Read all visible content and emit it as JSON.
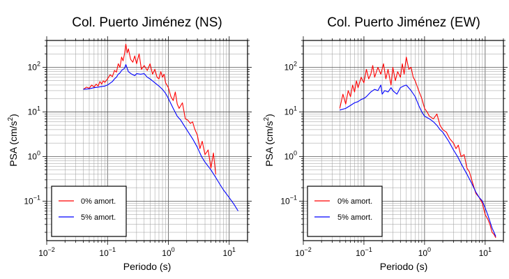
{
  "chart_data": [
    {
      "type": "line",
      "title": "Col. Puerto Jiménez (NS)",
      "xlabel": "Periodo (s)",
      "ylabel_main": "PSA (cm/s",
      "ylabel_sup": "2",
      "ylabel_close": ")",
      "x_scale": "log",
      "y_scale": "log",
      "xlim": [
        0.01,
        20
      ],
      "ylim": [
        0.013,
        400
      ],
      "grid": true,
      "legend_position": "bottom-left",
      "x_ticks": [
        {
          "base": "10",
          "exp": "−2",
          "value": 0.01
        },
        {
          "base": "10",
          "exp": "−1",
          "value": 0.1
        },
        {
          "base": "10",
          "exp": "0",
          "value": 1
        },
        {
          "base": "10",
          "exp": "1",
          "value": 10
        }
      ],
      "y_ticks": [
        {
          "base": "10",
          "exp": "−1",
          "value": 0.1
        },
        {
          "base": "10",
          "exp": "0",
          "value": 1
        },
        {
          "base": "10",
          "exp": "1",
          "value": 10
        },
        {
          "base": "10",
          "exp": "2",
          "value": 100
        }
      ],
      "series": [
        {
          "name": "0% amort.",
          "color": "#ff0000",
          "x": [
            0.04,
            0.045,
            0.05,
            0.055,
            0.06,
            0.065,
            0.07,
            0.075,
            0.08,
            0.085,
            0.09,
            0.1,
            0.11,
            0.12,
            0.13,
            0.14,
            0.15,
            0.16,
            0.17,
            0.18,
            0.19,
            0.2,
            0.21,
            0.22,
            0.24,
            0.26,
            0.28,
            0.3,
            0.33,
            0.36,
            0.4,
            0.45,
            0.5,
            0.55,
            0.6,
            0.65,
            0.7,
            0.75,
            0.8,
            0.85,
            0.9,
            1.0,
            1.1,
            1.2,
            1.3,
            1.4,
            1.5,
            1.7,
            1.9,
            2.1,
            2.3,
            2.5,
            2.7,
            3.0,
            3.3,
            3.6,
            4.0,
            4.5,
            5.0,
            5.5,
            6.0
          ],
          "y": [
            32,
            36,
            34,
            40,
            36,
            42,
            38,
            48,
            42,
            50,
            46,
            55,
            68,
            62,
            85,
            78,
            120,
            100,
            170,
            140,
            200,
            330,
            210,
            260,
            150,
            130,
            180,
            120,
            200,
            90,
            110,
            85,
            120,
            70,
            90,
            60,
            55,
            80,
            60,
            70,
            45,
            35,
            22,
            18,
            28,
            15,
            12,
            16,
            7,
            6.5,
            5.5,
            6,
            4.2,
            3,
            1.5,
            2.2,
            1.1,
            1.4,
            0.55,
            1.2,
            0.4
          ]
        },
        {
          "name": "5% amort.",
          "color": "#0000ff",
          "x": [
            0.04,
            0.05,
            0.06,
            0.07,
            0.08,
            0.09,
            0.1,
            0.11,
            0.12,
            0.13,
            0.14,
            0.15,
            0.16,
            0.17,
            0.18,
            0.19,
            0.2,
            0.22,
            0.25,
            0.28,
            0.3,
            0.35,
            0.4,
            0.45,
            0.5,
            0.6,
            0.7,
            0.8,
            0.9,
            1.0,
            1.2,
            1.4,
            1.6,
            1.8,
            2.0,
            2.5,
            3.0,
            3.5,
            4.0,
            5.0,
            6.0,
            7.0,
            8.0,
            10.0,
            12.0,
            14.0
          ],
          "y": [
            32,
            33,
            35,
            36,
            37,
            38,
            40,
            44,
            48,
            55,
            60,
            70,
            75,
            85,
            90,
            95,
            115,
            80,
            70,
            65,
            72,
            70,
            72,
            60,
            55,
            45,
            38,
            32,
            26,
            20,
            12,
            8,
            6.5,
            5,
            4,
            2.5,
            1.6,
            1.0,
            0.75,
            0.5,
            0.34,
            0.24,
            0.18,
            0.12,
            0.085,
            0.06
          ]
        }
      ]
    },
    {
      "type": "line",
      "title": "Col. Puerto Jiménez (EW)",
      "xlabel": "Periodo (s)",
      "ylabel_main": "PSA (cm/s",
      "ylabel_sup": "2",
      "ylabel_close": ")",
      "x_scale": "log",
      "y_scale": "log",
      "xlim": [
        0.01,
        20
      ],
      "ylim": [
        0.013,
        400
      ],
      "grid": true,
      "legend_position": "bottom-left",
      "x_ticks": [
        {
          "base": "10",
          "exp": "−2",
          "value": 0.01
        },
        {
          "base": "10",
          "exp": "−1",
          "value": 0.1
        },
        {
          "base": "10",
          "exp": "0",
          "value": 1
        },
        {
          "base": "10",
          "exp": "1",
          "value": 10
        }
      ],
      "y_ticks": [
        {
          "base": "10",
          "exp": "−1",
          "value": 0.1
        },
        {
          "base": "10",
          "exp": "0",
          "value": 1
        },
        {
          "base": "10",
          "exp": "1",
          "value": 10
        },
        {
          "base": "10",
          "exp": "2",
          "value": 100
        }
      ],
      "series": [
        {
          "name": "0% amort.",
          "color": "#ff0000",
          "x": [
            0.04,
            0.045,
            0.05,
            0.055,
            0.06,
            0.065,
            0.07,
            0.075,
            0.08,
            0.09,
            0.1,
            0.11,
            0.12,
            0.13,
            0.14,
            0.15,
            0.17,
            0.19,
            0.21,
            0.23,
            0.25,
            0.28,
            0.3,
            0.33,
            0.36,
            0.4,
            0.43,
            0.46,
            0.5,
            0.55,
            0.6,
            0.65,
            0.7,
            0.8,
            0.9,
            1.0,
            1.1,
            1.2,
            1.4,
            1.6,
            1.8,
            2.0,
            2.3,
            2.6,
            3.0,
            3.3,
            3.6,
            4.0,
            4.5,
            5.0,
            5.5,
            6.0,
            7.0,
            8.0,
            9.0,
            10.0,
            11.0,
            12.0,
            13.0,
            14.0,
            15.0
          ],
          "y": [
            12,
            25,
            15,
            30,
            22,
            40,
            28,
            50,
            35,
            60,
            45,
            90,
            55,
            70,
            110,
            60,
            100,
            70,
            120,
            55,
            90,
            40,
            100,
            50,
            80,
            60,
            120,
            70,
            170,
            90,
            100,
            60,
            50,
            30,
            20,
            12,
            10,
            8,
            7,
            9,
            5,
            4,
            3.5,
            2.5,
            2,
            1.5,
            1.8,
            1.0,
            1.1,
            0.55,
            0.45,
            0.3,
            0.15,
            0.12,
            0.09,
            0.05,
            0.04,
            0.03,
            0.02,
            0.018,
            0.015
          ]
        },
        {
          "name": "5% amort.",
          "color": "#0000ff",
          "x": [
            0.04,
            0.05,
            0.06,
            0.07,
            0.08,
            0.09,
            0.1,
            0.11,
            0.12,
            0.13,
            0.14,
            0.15,
            0.17,
            0.19,
            0.2,
            0.22,
            0.25,
            0.28,
            0.3,
            0.35,
            0.4,
            0.45,
            0.5,
            0.6,
            0.7,
            0.8,
            0.9,
            1.0,
            1.2,
            1.4,
            1.6,
            1.8,
            2.0,
            2.5,
            3.0,
            3.5,
            4.0,
            5.0,
            6.0,
            7.0,
            8.0,
            9.0,
            10.0,
            11.0,
            12.0,
            13.0,
            14.0,
            15.0
          ],
          "y": [
            11,
            12,
            14,
            16,
            17,
            19,
            20,
            22,
            25,
            28,
            30,
            32,
            30,
            40,
            25,
            30,
            28,
            35,
            30,
            25,
            35,
            38,
            40,
            30,
            22,
            14,
            10,
            8,
            7,
            6,
            5,
            4,
            3.5,
            2.2,
            1.4,
            1.0,
            0.7,
            0.4,
            0.25,
            0.16,
            0.12,
            0.1,
            0.07,
            0.05,
            0.035,
            0.025,
            0.02,
            0.016
          ]
        }
      ]
    }
  ]
}
